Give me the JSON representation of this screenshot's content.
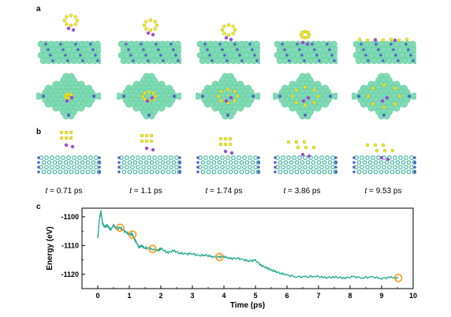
{
  "panels": {
    "a": "a",
    "b": "b",
    "c": "c"
  },
  "snapshots": [
    {
      "t_var": "t",
      "eq": " = ",
      "value": "0.71 ps"
    },
    {
      "t_var": "t",
      "eq": " = ",
      "value": "1.1 ps"
    },
    {
      "t_var": "t",
      "eq": " = ",
      "value": "1.74 ps"
    },
    {
      "t_var": "t",
      "eq": " = ",
      "value": "3.86 ps"
    },
    {
      "t_var": "t",
      "eq": " = ",
      "value": "9.53 ps"
    }
  ],
  "colors": {
    "metal": "#7fdcb4",
    "metal_edge": "#5bbf97",
    "dopant": "#5560c8",
    "sulfur": "#f2ea2a",
    "lithium": "#9a4fd0",
    "line": "#1fa58e",
    "marker": "#f59b1c"
  },
  "chart_data": {
    "type": "line",
    "xlabel": "Time (ps)",
    "ylabel": "Energy (eV)",
    "xlim": [
      -0.5,
      10
    ],
    "ylim": [
      -1125,
      -1097
    ],
    "xticks": [
      0,
      1,
      2,
      3,
      4,
      5,
      6,
      7,
      8,
      9,
      10
    ],
    "yticks": [
      -1100,
      -1110,
      -1120
    ],
    "x": [
      0,
      0.05,
      0.1,
      0.15,
      0.2,
      0.3,
      0.4,
      0.5,
      0.6,
      0.71,
      0.8,
      0.9,
      1.0,
      1.1,
      1.2,
      1.3,
      1.4,
      1.5,
      1.6,
      1.74,
      1.9,
      2.0,
      2.2,
      2.4,
      2.6,
      2.8,
      3.0,
      3.2,
      3.4,
      3.6,
      3.86,
      4.0,
      4.2,
      4.4,
      4.6,
      4.8,
      5.0,
      5.2,
      5.4,
      5.6,
      5.8,
      6.0,
      6.3,
      6.6,
      6.9,
      7.2,
      7.5,
      7.8,
      8.1,
      8.4,
      8.7,
      9.0,
      9.3,
      9.53
    ],
    "y": [
      -1107.5,
      -1101,
      -1098,
      -1102,
      -1103.5,
      -1103,
      -1104.5,
      -1103,
      -1104.2,
      -1103.8,
      -1104.5,
      -1105.5,
      -1106,
      -1106.2,
      -1108.5,
      -1110.5,
      -1110.2,
      -1110.8,
      -1111,
      -1111.2,
      -1111.8,
      -1111,
      -1112.5,
      -1111.8,
      -1112.6,
      -1113,
      -1112.7,
      -1113.6,
      -1113.2,
      -1113.9,
      -1114,
      -1113.8,
      -1114.6,
      -1114.3,
      -1115,
      -1115.3,
      -1115.2,
      -1117,
      -1118,
      -1119,
      -1119.6,
      -1120.4,
      -1120.8,
      -1121,
      -1120.6,
      -1121.2,
      -1121,
      -1121.3,
      -1120.9,
      -1121.2,
      -1121,
      -1121.4,
      -1121.1,
      -1121.3
    ],
    "markers": [
      {
        "x": 0.71,
        "y": -1103.8
      },
      {
        "x": 1.1,
        "y": -1106.2
      },
      {
        "x": 1.74,
        "y": -1111.2
      },
      {
        "x": 3.86,
        "y": -1114
      },
      {
        "x": 9.53,
        "y": -1121.3
      }
    ]
  }
}
